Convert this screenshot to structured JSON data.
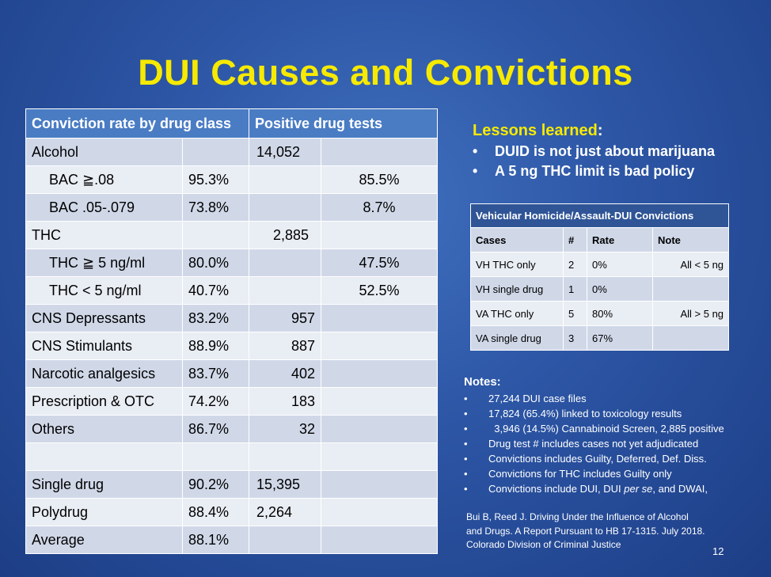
{
  "title": "DUI Causes and Convictions",
  "main_table": {
    "headers": [
      "Conviction rate by drug class",
      "Positive drug tests"
    ],
    "rows": [
      {
        "label": "Alcohol",
        "rate": "",
        "tests": "14,052",
        "pct": ""
      },
      {
        "label": "BAC ≧.08",
        "rate": "95.3%",
        "tests": "",
        "pct": "85.5%"
      },
      {
        "label": "BAC .05-.079",
        "rate": "73.8%",
        "tests": "",
        "pct": "8.7%"
      },
      {
        "label": "THC",
        "rate": "",
        "tests": "2,885",
        "pct": ""
      },
      {
        "label": "THC ≧ 5 ng/ml",
        "rate": "80.0%",
        "tests": "",
        "pct": "47.5%"
      },
      {
        "label": "THC < 5 ng/ml",
        "rate": "40.7%",
        "tests": "",
        "pct": "52.5%"
      },
      {
        "label": "CNS Depressants",
        "rate": "83.2%",
        "tests": "957",
        "pct": ""
      },
      {
        "label": "CNS Stimulants",
        "rate": "88.9%",
        "tests": "887",
        "pct": ""
      },
      {
        "label": "Narcotic analgesics",
        "rate": "83.7%",
        "tests": "402",
        "pct": ""
      },
      {
        "label": "Prescription & OTC",
        "rate": "74.2%",
        "tests": "183",
        "pct": ""
      },
      {
        "label": "Others",
        "rate": "86.7%",
        "tests": "32",
        "pct": ""
      },
      {
        "label": "",
        "rate": "",
        "tests": "",
        "pct": ""
      },
      {
        "label": "Single drug",
        "rate": "90.2%",
        "tests": "15,395",
        "pct": ""
      },
      {
        "label": "Polydrug",
        "rate": "88.4%",
        "tests": "2,264",
        "pct": ""
      },
      {
        "label": "Average",
        "rate": "88.1%",
        "tests": "",
        "pct": ""
      }
    ]
  },
  "lessons": {
    "heading": "Lessons learned",
    "colon": ":",
    "bullet": "•",
    "items": [
      "DUID is not just about marijuana",
      "A 5 ng THC limit is bad policy"
    ]
  },
  "vh_table": {
    "title": "Vehicular Homicide/Assault-DUI Convictions",
    "columns": [
      "Cases",
      "#",
      "Rate",
      "Note"
    ],
    "rows": [
      {
        "case": "VH THC only",
        "n": "2",
        "rate": "0%",
        "note": "All < 5 ng"
      },
      {
        "case": "VH single drug",
        "n": "1",
        "rate": "0%",
        "note": ""
      },
      {
        "case": "VA THC only",
        "n": "5",
        "rate": "80%",
        "note": "All > 5 ng"
      },
      {
        "case": "VA single drug",
        "n": "3",
        "rate": "67%",
        "note": ""
      }
    ]
  },
  "notes": {
    "heading": "Notes:",
    "items": [
      "27,244 DUI case files",
      "17,824 (65.4%) linked to toxicology results",
      "  3,946 (14.5%) Cannabinoid Screen, 2,885 positive",
      "Drug test # includes cases not yet adjudicated",
      "Convictions includes Guilty, Deferred, Def. Diss.",
      "Convictions for THC includes Guilty only",
      "Convictions include DUI, DUI per se, and DWAI,"
    ]
  },
  "citation": {
    "line1": "Bui B, Reed J. Driving Under the Influence of Alcohol",
    "line2": "and Drugs. A Report Pursuant to HB 17-1315. July 2018.",
    "line3": "Colorado Division of Criminal Justice"
  },
  "page_number": "12",
  "colors": {
    "title": "#f7ea00",
    "highlight_red": "#e51010",
    "header_blue": "#4a7cc4",
    "background": "#2c55a4"
  }
}
